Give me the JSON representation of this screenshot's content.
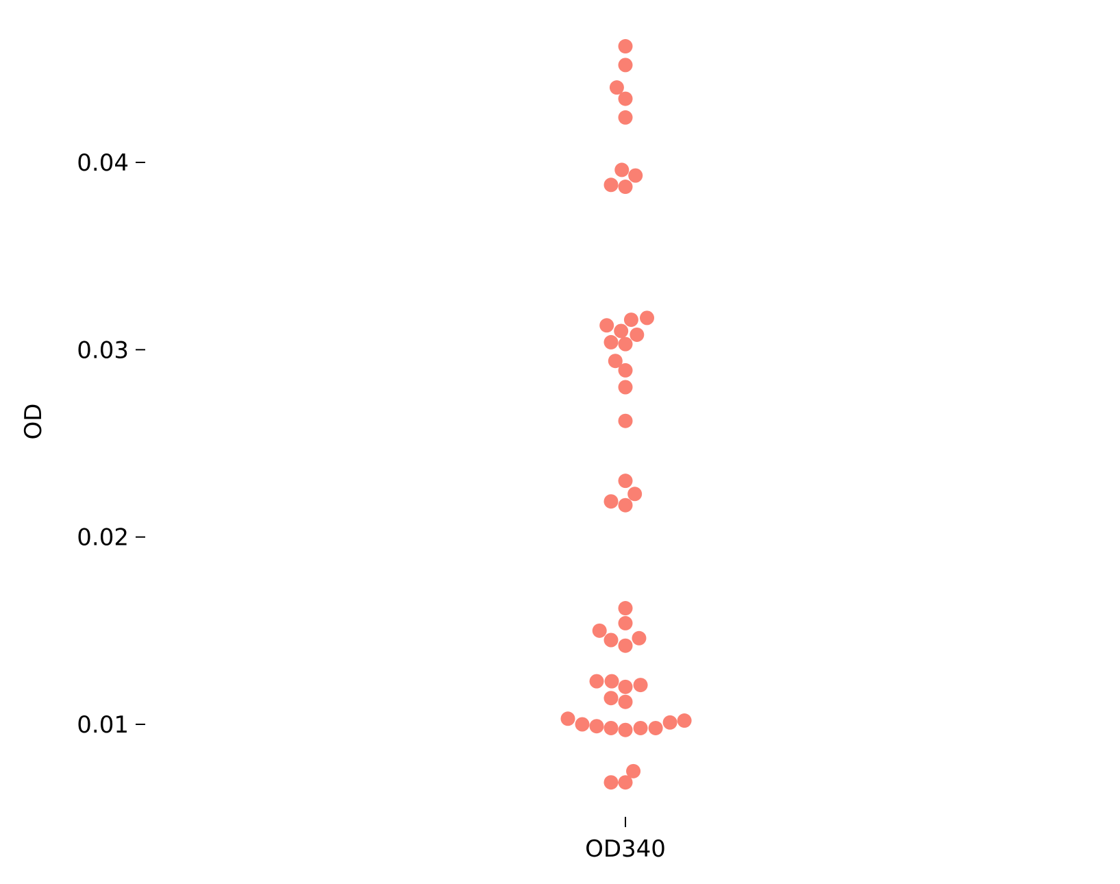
{
  "chart_data": {
    "type": "scatter",
    "subtype": "swarm",
    "title": "",
    "xlabel": "",
    "ylabel": "OD",
    "categories": [
      "OD340"
    ],
    "ylim": [
      0.005,
      0.0475
    ],
    "yticks": [
      0.01,
      0.02,
      0.03,
      0.04
    ],
    "ytick_labels": [
      "0.01",
      "0.02",
      "0.03",
      "0.04"
    ],
    "grid": false,
    "legend": "none",
    "marker_color": "#FA8072",
    "series": [
      {
        "category": "OD340",
        "points": [
          {
            "y": 0.0462,
            "offset": 0.0
          },
          {
            "y": 0.0452,
            "offset": 0.0
          },
          {
            "y": 0.044,
            "offset": -0.6
          },
          {
            "y": 0.0434,
            "offset": 0.0
          },
          {
            "y": 0.0424,
            "offset": 0.0
          },
          {
            "y": 0.0396,
            "offset": -0.25
          },
          {
            "y": 0.0393,
            "offset": 0.7
          },
          {
            "y": 0.0388,
            "offset": -1.0
          },
          {
            "y": 0.0387,
            "offset": 0.0
          },
          {
            "y": 0.0317,
            "offset": 1.5
          },
          {
            "y": 0.0316,
            "offset": 0.4
          },
          {
            "y": 0.0313,
            "offset": -1.3
          },
          {
            "y": 0.031,
            "offset": -0.3
          },
          {
            "y": 0.0308,
            "offset": 0.8
          },
          {
            "y": 0.0304,
            "offset": -1.0
          },
          {
            "y": 0.0303,
            "offset": 0.0
          },
          {
            "y": 0.0294,
            "offset": -0.7
          },
          {
            "y": 0.0289,
            "offset": 0.0
          },
          {
            "y": 0.028,
            "offset": 0.0
          },
          {
            "y": 0.0262,
            "offset": 0.0
          },
          {
            "y": 0.023,
            "offset": 0.0
          },
          {
            "y": 0.0223,
            "offset": 0.65
          },
          {
            "y": 0.0219,
            "offset": -1.0
          },
          {
            "y": 0.0217,
            "offset": 0.0
          },
          {
            "y": 0.0162,
            "offset": 0.0
          },
          {
            "y": 0.0154,
            "offset": 0.0
          },
          {
            "y": 0.015,
            "offset": -1.8
          },
          {
            "y": 0.0146,
            "offset": 0.95
          },
          {
            "y": 0.0145,
            "offset": -1.0
          },
          {
            "y": 0.0142,
            "offset": 0.0
          },
          {
            "y": 0.0123,
            "offset": -2.0
          },
          {
            "y": 0.0123,
            "offset": -0.95
          },
          {
            "y": 0.0121,
            "offset": 1.05
          },
          {
            "y": 0.012,
            "offset": 0.0
          },
          {
            "y": 0.0114,
            "offset": -1.0
          },
          {
            "y": 0.0112,
            "offset": 0.0
          },
          {
            "y": 0.0103,
            "offset": -4.0
          },
          {
            "y": 0.0102,
            "offset": 4.1
          },
          {
            "y": 0.0101,
            "offset": 3.1
          },
          {
            "y": 0.01,
            "offset": -3.0
          },
          {
            "y": 0.0099,
            "offset": -2.0
          },
          {
            "y": 0.0098,
            "offset": 2.1
          },
          {
            "y": 0.0098,
            "offset": 1.05
          },
          {
            "y": 0.0098,
            "offset": -1.0
          },
          {
            "y": 0.0097,
            "offset": 0.0
          },
          {
            "y": 0.0075,
            "offset": 0.55
          },
          {
            "y": 0.0069,
            "offset": -1.0
          },
          {
            "y": 0.0069,
            "offset": 0.0
          }
        ]
      }
    ]
  }
}
